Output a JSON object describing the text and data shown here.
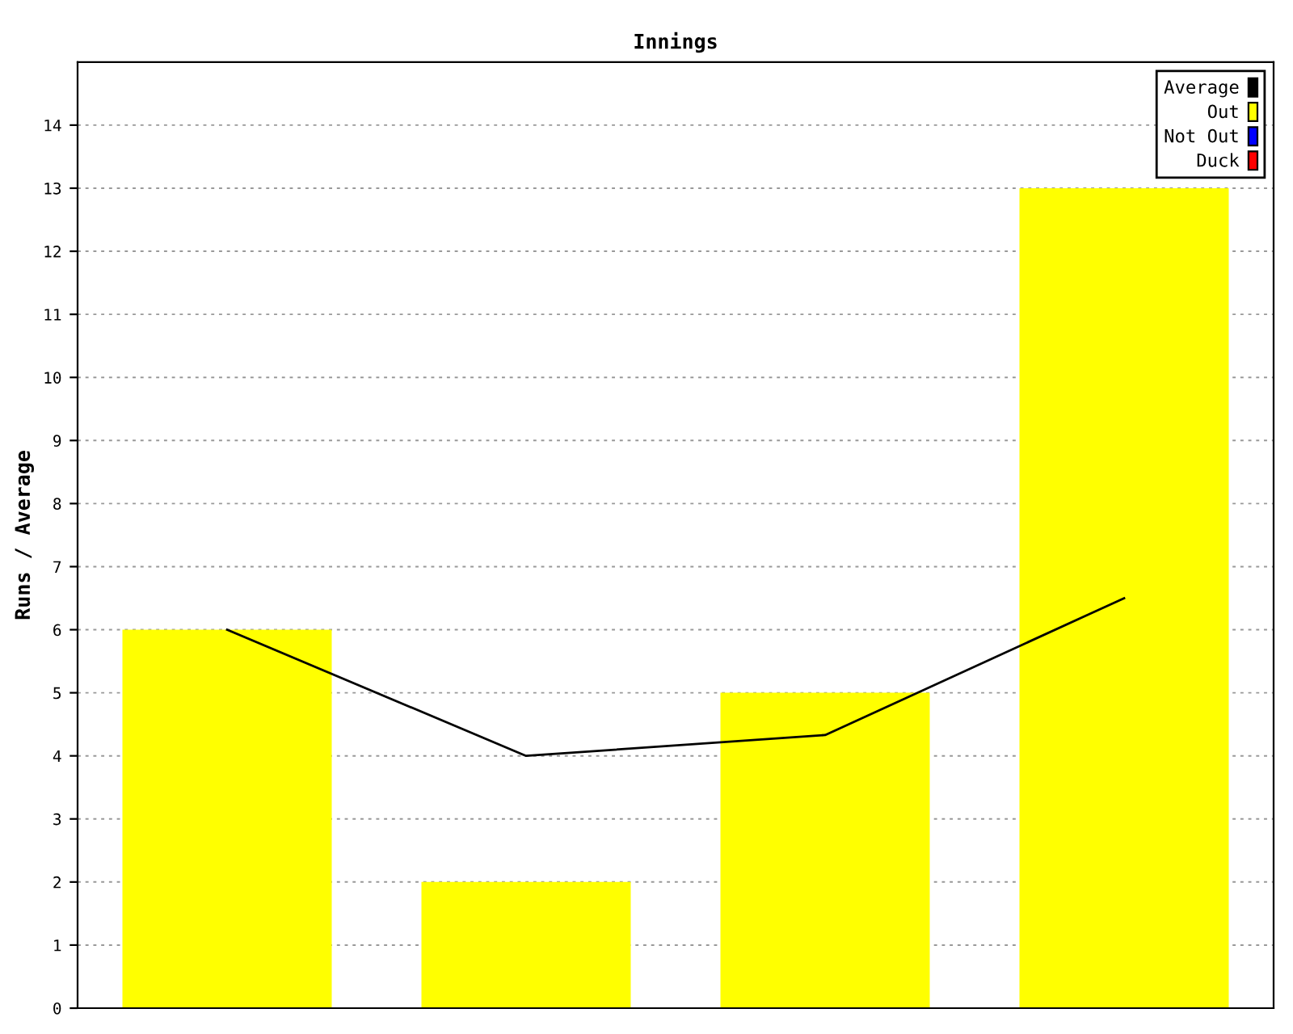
{
  "chart_data": {
    "type": "bar",
    "title": "Innings",
    "ylabel": "Runs / Average",
    "categories": [
      null,
      null,
      null,
      null
    ],
    "series": [
      {
        "name": "Average",
        "type": "line",
        "color": "#000000",
        "values": [
          6,
          4,
          4.33,
          6.5
        ]
      },
      {
        "name": "Out",
        "color": "#ffff00",
        "values": [
          6,
          2,
          5,
          13
        ]
      },
      {
        "name": "Not Out",
        "color": "#0000ff",
        "values": [
          null,
          null,
          null,
          null
        ]
      },
      {
        "name": "Duck",
        "color": "#ff0000",
        "values": [
          null,
          null,
          null,
          null
        ]
      }
    ],
    "ylim": [
      0,
      15
    ],
    "yticks": [
      0,
      1,
      2,
      3,
      4,
      5,
      6,
      7,
      8,
      9,
      10,
      11,
      12,
      13,
      14
    ],
    "grid": "y",
    "legend": "top right",
    "tick_labels": "y"
  }
}
